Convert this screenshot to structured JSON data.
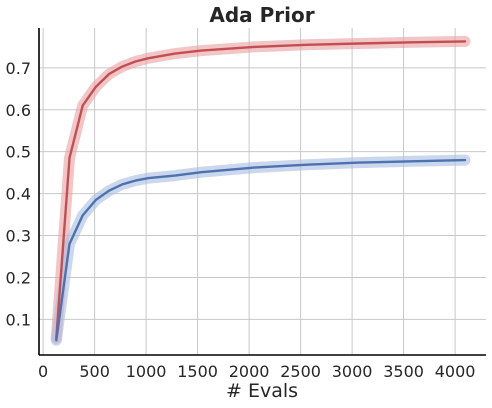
{
  "chart_data": {
    "type": "line",
    "title": "Ada Prior",
    "xlabel": "# Evals",
    "ylabel": "",
    "xlim": [
      -40,
      4300
    ],
    "ylim": [
      0.015,
      0.795
    ],
    "xticks": [
      0,
      500,
      1000,
      1500,
      2000,
      2500,
      3000,
      3500,
      4000
    ],
    "yticks": [
      0.1,
      0.2,
      0.3,
      0.4,
      0.5,
      0.6,
      0.7
    ],
    "grid": true,
    "series": [
      {
        "color": "#c44e52",
        "band_color": "#e8a0a2",
        "x": [
          128,
          256,
          384,
          512,
          640,
          768,
          896,
          1024,
          1280,
          1536,
          2048,
          2560,
          3072,
          3584,
          4096
        ],
        "y": [
          0.055,
          0.485,
          0.61,
          0.655,
          0.685,
          0.703,
          0.715,
          0.723,
          0.734,
          0.741,
          0.75,
          0.755,
          0.758,
          0.761,
          0.763
        ]
      },
      {
        "color": "#4c72b0",
        "band_color": "#a8bde0",
        "x": [
          128,
          256,
          384,
          512,
          640,
          768,
          896,
          1024,
          1280,
          1536,
          2048,
          2560,
          3072,
          3584,
          4096
        ],
        "y": [
          0.05,
          0.28,
          0.348,
          0.385,
          0.407,
          0.422,
          0.431,
          0.437,
          0.443,
          0.451,
          0.462,
          0.469,
          0.474,
          0.477,
          0.48
        ]
      }
    ]
  }
}
